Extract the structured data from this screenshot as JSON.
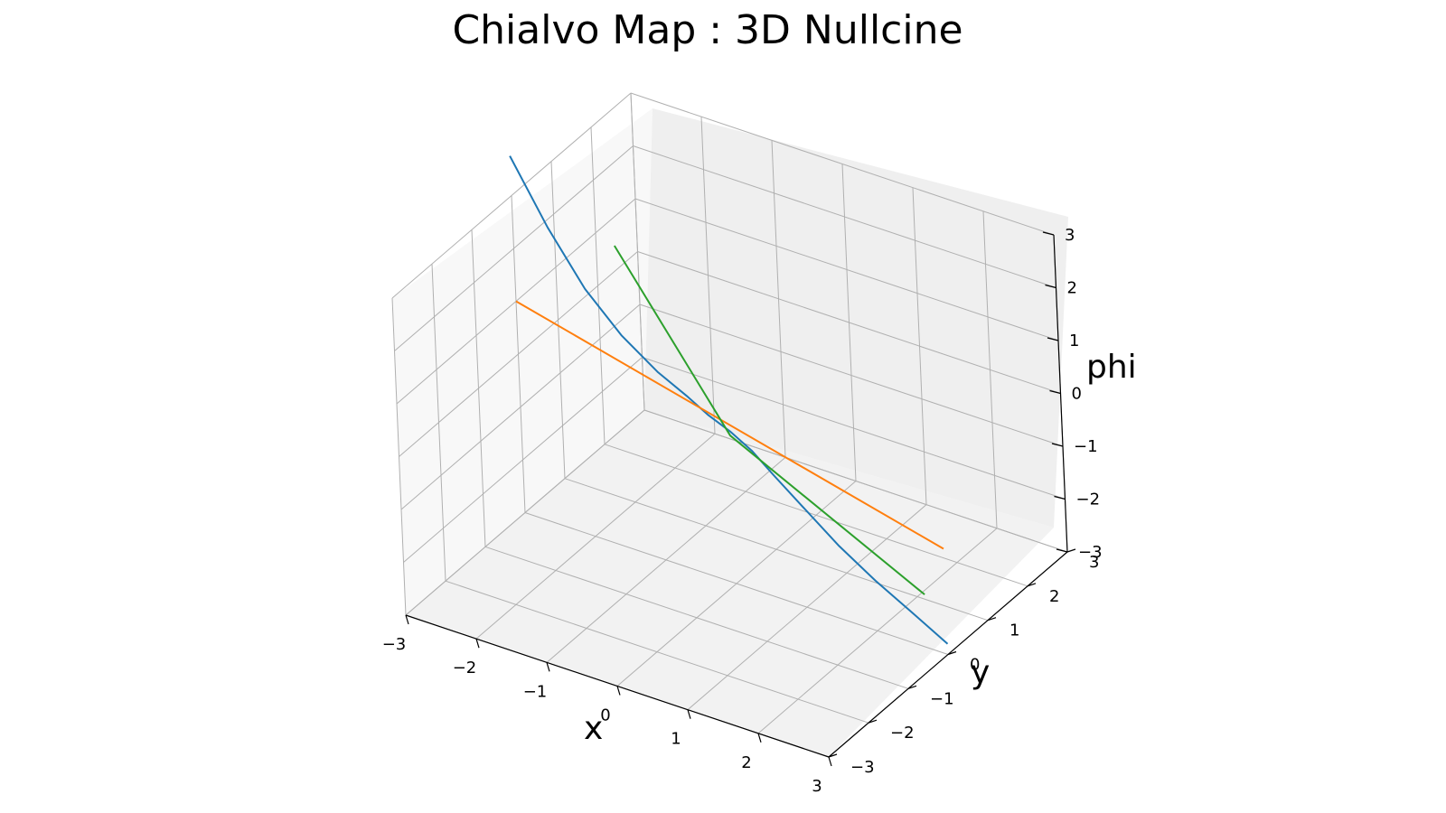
{
  "chart_data": {
    "type": "line3d",
    "title": "Chialvo Map : 3D Nullcine",
    "xlabel": "x",
    "ylabel": "y",
    "zlabel": "phi",
    "xlim": [
      -3,
      3
    ],
    "ylim": [
      -3,
      3
    ],
    "zlim": [
      -3,
      3
    ],
    "xticks": [
      "−3",
      "−2",
      "−1",
      "0",
      "1",
      "2",
      "3"
    ],
    "yticks": [
      "−3",
      "−2",
      "−1",
      "0",
      "1",
      "2",
      "3"
    ],
    "zticks": [
      "−3",
      "−2",
      "−1",
      "0",
      "1",
      "2",
      "3"
    ],
    "grid": true,
    "series": [
      {
        "color": "#1f77b4",
        "points": [
          [
            -3.0,
            0.0,
            3.75
          ],
          [
            -2.5,
            0.0,
            2.62
          ],
          [
            -2.0,
            0.0,
            1.68
          ],
          [
            -1.5,
            0.0,
            1.02
          ],
          [
            -1.0,
            0.0,
            0.55
          ],
          [
            -0.6,
            0.0,
            0.28
          ],
          [
            -0.3,
            0.0,
            0.05
          ],
          [
            0.0,
            0.0,
            -0.12
          ],
          [
            0.3,
            0.0,
            -0.35
          ],
          [
            0.6,
            0.0,
            -0.68
          ],
          [
            1.0,
            0.0,
            -1.1
          ],
          [
            1.5,
            0.0,
            -1.62
          ],
          [
            2.0,
            0.0,
            -2.05
          ],
          [
            2.5,
            0.0,
            -2.42
          ],
          [
            3.0,
            0.0,
            -2.8
          ]
        ]
      },
      {
        "color": "#ff7f0e",
        "points": [
          [
            -3.0,
            0.0,
            1.0
          ],
          [
            3.0,
            0.0,
            -1.0
          ]
        ]
      },
      {
        "color": "#2ca02c",
        "points": [
          [
            -1.55,
            0.0,
            2.7
          ],
          [
            0.0,
            0.0,
            -0.2
          ],
          [
            2.7,
            0.0,
            -2.0
          ]
        ]
      }
    ]
  }
}
